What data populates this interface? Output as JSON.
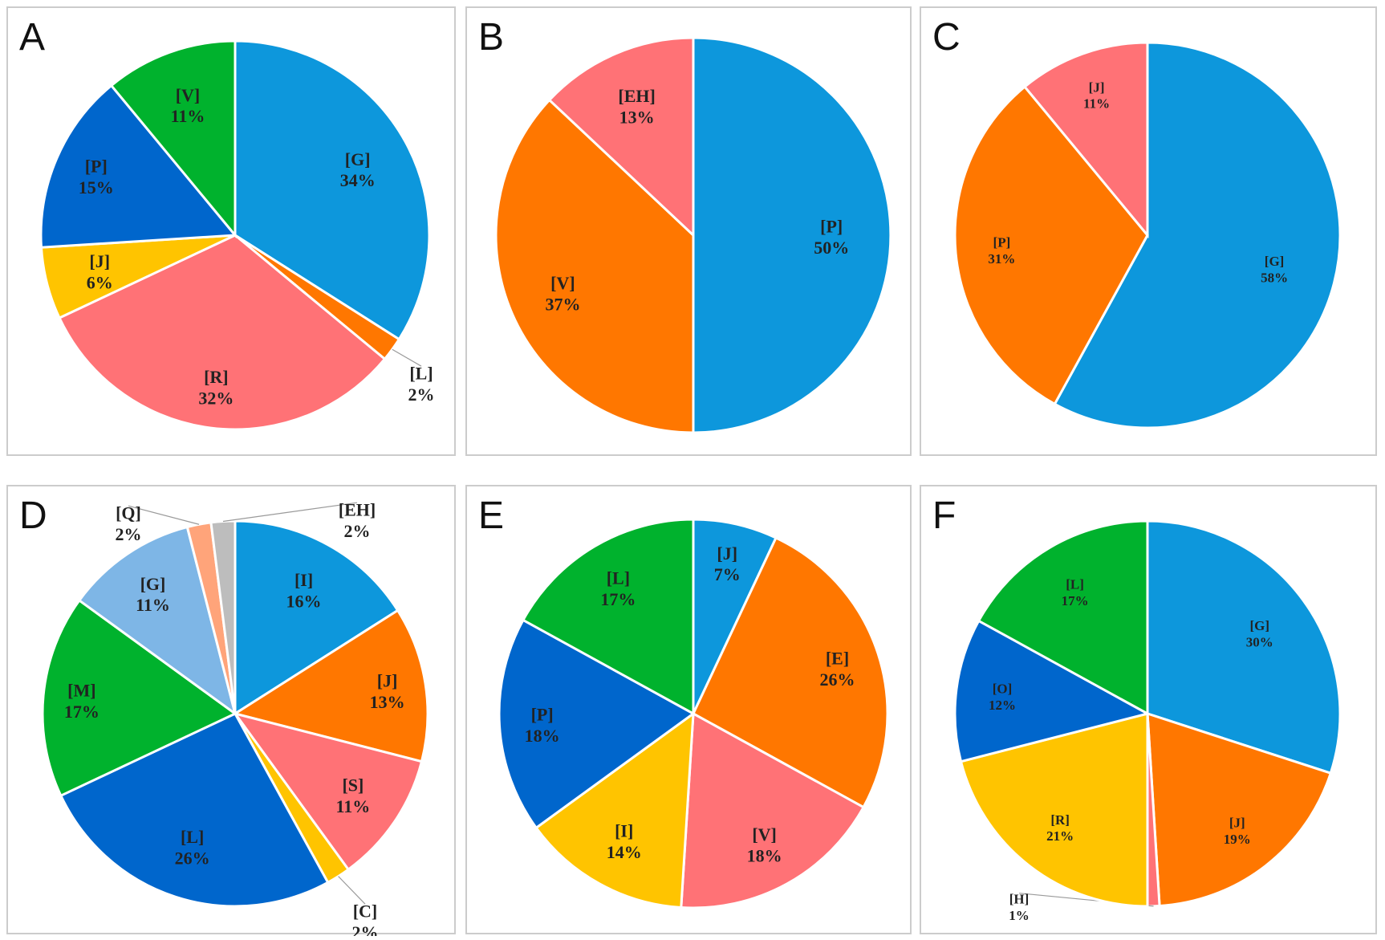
{
  "chart_data": [
    {
      "type": "pie",
      "panel": "A",
      "start": "top, clockwise",
      "slices": [
        {
          "label": "[G]",
          "value": 34,
          "pct": "34%",
          "color": "#0d97dc"
        },
        {
          "label": "[L]",
          "value": 2,
          "pct": "2%",
          "color": "#ff7700"
        },
        {
          "label": "[R]",
          "value": 32,
          "pct": "32%",
          "color": "#ff7276"
        },
        {
          "label": "[J]",
          "value": 6,
          "pct": "6%",
          "color": "#ffc400"
        },
        {
          "label": "[P]",
          "value": 15,
          "pct": "15%",
          "color": "#0066cc"
        },
        {
          "label": "[V]",
          "value": 11,
          "pct": "11%",
          "color": "#00b22d"
        }
      ]
    },
    {
      "type": "pie",
      "panel": "B",
      "start": "top, clockwise",
      "slices": [
        {
          "label": "[P]",
          "value": 50,
          "pct": "50%",
          "color": "#0d97dc"
        },
        {
          "label": "[V]",
          "value": 37,
          "pct": "37%",
          "color": "#ff7700"
        },
        {
          "label": "[EH]",
          "value": 13,
          "pct": "13%",
          "color": "#ff7276"
        }
      ]
    },
    {
      "type": "pie",
      "panel": "C",
      "start": "top, clockwise",
      "slices": [
        {
          "label": "[G]",
          "value": 58,
          "pct": "58%",
          "color": "#0d97dc"
        },
        {
          "label": "[P]",
          "value": 31,
          "pct": "31%",
          "color": "#ff7700"
        },
        {
          "label": "[J]",
          "value": 11,
          "pct": "11%",
          "color": "#ff7276"
        }
      ]
    },
    {
      "type": "pie",
      "panel": "D",
      "start": "top, clockwise",
      "slices": [
        {
          "label": "[I]",
          "value": 16,
          "pct": "16%",
          "color": "#0d97dc"
        },
        {
          "label": "[J]",
          "value": 13,
          "pct": "13%",
          "color": "#ff7700"
        },
        {
          "label": "[S]",
          "value": 11,
          "pct": "11%",
          "color": "#ff7276"
        },
        {
          "label": "[C]",
          "value": 2,
          "pct": "2%",
          "color": "#ffc400"
        },
        {
          "label": "[L]",
          "value": 26,
          "pct": "26%",
          "color": "#0066cc"
        },
        {
          "label": "[M]",
          "value": 17,
          "pct": "17%",
          "color": "#00b22d"
        },
        {
          "label": "[G]",
          "value": 11,
          "pct": "11%",
          "color": "#7eb6e6"
        },
        {
          "label": "[Q]",
          "value": 2,
          "pct": "2%",
          "color": "#ffa47a"
        },
        {
          "label": "[EH]",
          "value": 2,
          "pct": "2%",
          "color": "#bdbdbd"
        }
      ]
    },
    {
      "type": "pie",
      "panel": "E",
      "start": "top, clockwise",
      "slices": [
        {
          "label": "[J]",
          "value": 7,
          "pct": "7%",
          "color": "#0d97dc"
        },
        {
          "label": "[E]",
          "value": 26,
          "pct": "26%",
          "color": "#ff7700"
        },
        {
          "label": "[V]",
          "value": 18,
          "pct": "18%",
          "color": "#ff7276"
        },
        {
          "label": "[I]",
          "value": 14,
          "pct": "14%",
          "color": "#ffc400"
        },
        {
          "label": "[P]",
          "value": 18,
          "pct": "18%",
          "color": "#0066cc"
        },
        {
          "label": "[L]",
          "value": 17,
          "pct": "17%",
          "color": "#00b22d"
        }
      ]
    },
    {
      "type": "pie",
      "panel": "F",
      "start": "top, clockwise",
      "slices": [
        {
          "label": "[G]",
          "value": 30,
          "pct": "30%",
          "color": "#0d97dc"
        },
        {
          "label": "[J]",
          "value": 19,
          "pct": "19%",
          "color": "#ff7700"
        },
        {
          "label": "[H]",
          "value": 1,
          "pct": "1%",
          "color": "#ff7276"
        },
        {
          "label": "[R]",
          "value": 21,
          "pct": "21%",
          "color": "#ffc400"
        },
        {
          "label": "[O]",
          "value": 12,
          "pct": "12%",
          "color": "#0066cc"
        },
        {
          "label": "[L]",
          "value": 17,
          "pct": "17%",
          "color": "#00b22d"
        }
      ]
    }
  ]
}
